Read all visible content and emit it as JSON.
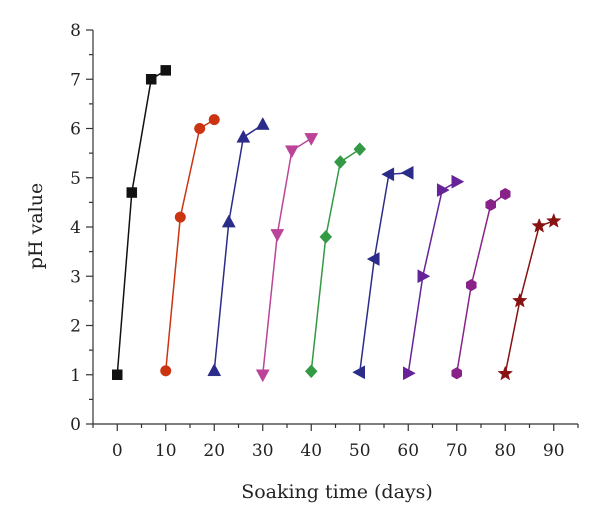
{
  "chart_data": {
    "type": "line",
    "xlabel": "Soaking time (days)",
    "ylabel": "pH value",
    "xlim": [
      -5,
      95
    ],
    "ylim": [
      0,
      8
    ],
    "x_ticks": [
      0,
      10,
      20,
      30,
      40,
      50,
      60,
      70,
      80,
      90
    ],
    "y_ticks": [
      0,
      1,
      2,
      3,
      4,
      5,
      6,
      7,
      8
    ],
    "grid": false,
    "series": [
      {
        "color": "#111111",
        "marker": "square",
        "x": [
          0,
          3,
          7,
          10
        ],
        "y": [
          1.0,
          4.7,
          7.0,
          7.18
        ]
      },
      {
        "color": "#cc3311",
        "marker": "circle",
        "x": [
          10,
          13,
          17,
          20
        ],
        "y": [
          1.08,
          4.2,
          6.0,
          6.18
        ]
      },
      {
        "color": "#2b2b8a",
        "marker": "triangle-up",
        "x": [
          20,
          23,
          26,
          30
        ],
        "y": [
          1.08,
          4.1,
          5.82,
          6.08
        ]
      },
      {
        "color": "#bb4499",
        "marker": "triangle-down",
        "x": [
          30,
          33,
          36,
          40
        ],
        "y": [
          1.0,
          3.85,
          5.55,
          5.8
        ]
      },
      {
        "color": "#339944",
        "marker": "diamond",
        "x": [
          40,
          43,
          46,
          50
        ],
        "y": [
          1.07,
          3.8,
          5.32,
          5.58
        ]
      },
      {
        "color": "#2b2b8a",
        "marker": "triangle-left",
        "x": [
          50,
          53,
          56,
          60
        ],
        "y": [
          1.05,
          3.35,
          5.07,
          5.1
        ]
      },
      {
        "color": "#662299",
        "marker": "triangle-right",
        "x": [
          60,
          63,
          67,
          70
        ],
        "y": [
          1.03,
          3.0,
          4.75,
          4.92
        ]
      },
      {
        "color": "#882288",
        "marker": "hexagon",
        "x": [
          70,
          73,
          77,
          80
        ],
        "y": [
          1.03,
          2.82,
          4.45,
          4.67
        ]
      },
      {
        "color": "#881111",
        "marker": "star",
        "x": [
          80,
          83,
          87,
          90
        ],
        "y": [
          1.02,
          2.5,
          4.02,
          4.12
        ]
      }
    ]
  }
}
